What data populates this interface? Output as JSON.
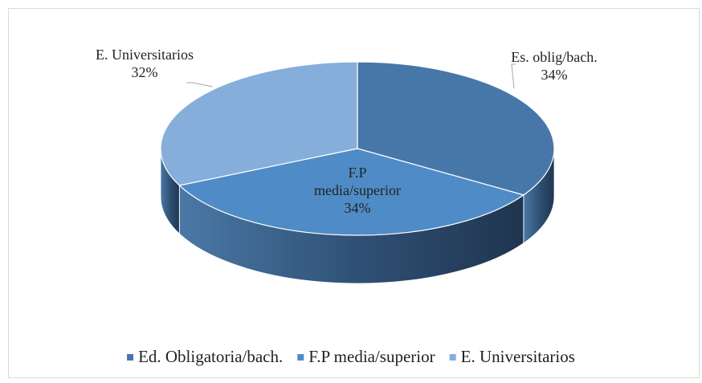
{
  "chart_data": {
    "type": "pie3d",
    "categories": [
      "Ed. Obligatoria/bach.",
      "F.P media/superior",
      "E. Universitarios"
    ],
    "data_labels": [
      "Es. oblig/bach.",
      "F.P media/superior",
      "E. Universitarios"
    ],
    "values": [
      34,
      34,
      32
    ],
    "value_labels": [
      "34%",
      "34%",
      "32%"
    ],
    "colors": [
      "#4677a8",
      "#4f8cc7",
      "#86aedb"
    ],
    "legend": "bottom"
  }
}
